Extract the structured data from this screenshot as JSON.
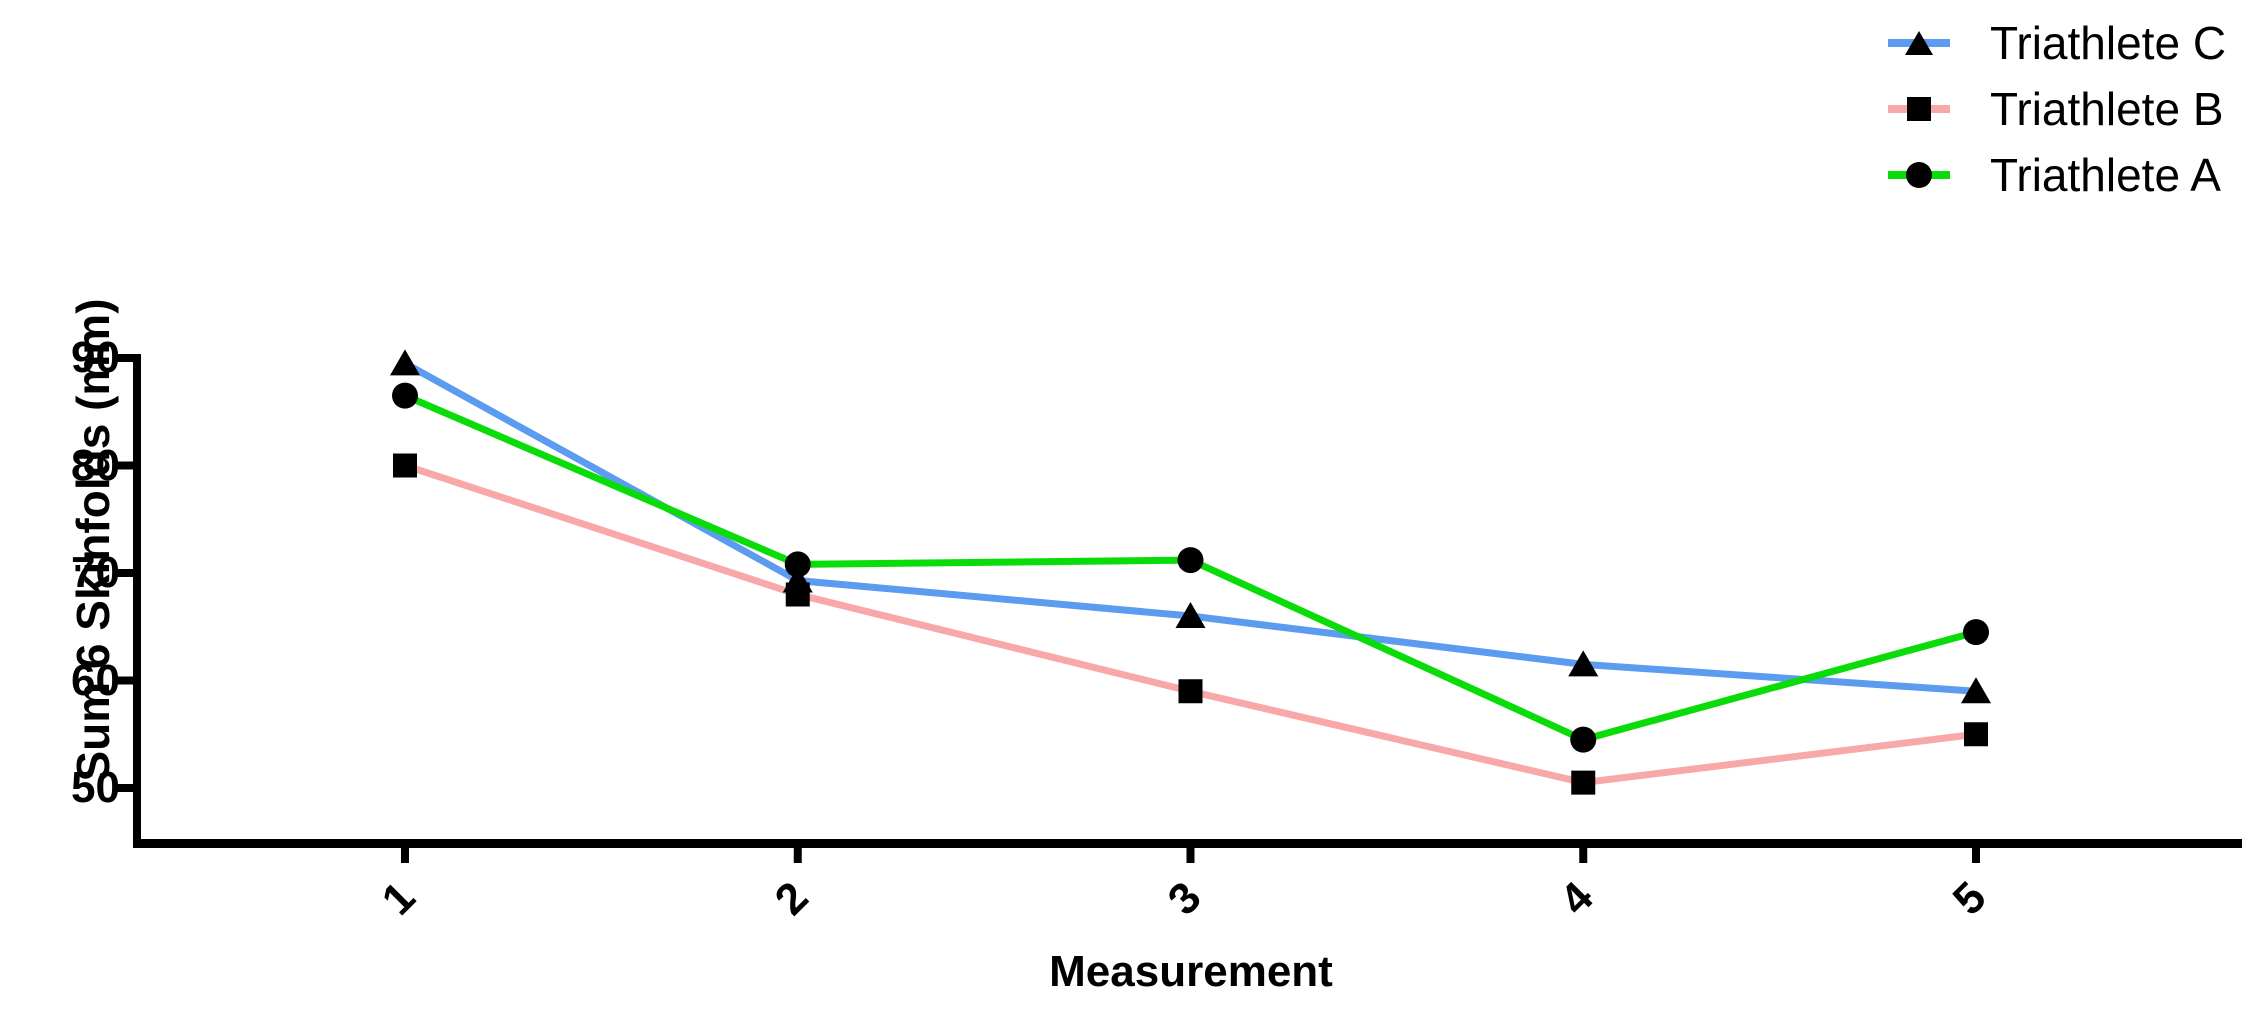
{
  "chart_data": {
    "type": "line",
    "title": "",
    "xlabel": "Measurement",
    "ylabel": "Sum 6 Skinfolds (mm)",
    "x": [
      1,
      2,
      3,
      4,
      5
    ],
    "xtick_labels": [
      "1",
      "2",
      "3",
      "4",
      "5"
    ],
    "ytick_labels": [
      90,
      80,
      70,
      60,
      50
    ],
    "ylim": [
      44.5,
      90.4
    ],
    "xlim": [
      0.3,
      5.7
    ],
    "grid": false,
    "legend_position": "top-right",
    "series": [
      {
        "name": "Triathlete C",
        "color": "#5B9BF0",
        "marker": "triangle",
        "marker_color": "#000000",
        "values": [
          89.5,
          69.3,
          66.0,
          61.5,
          59.0
        ]
      },
      {
        "name": "Triathlete B",
        "color": "#F8A8A8",
        "marker": "square",
        "marker_color": "#000000",
        "values": [
          80.0,
          68.0,
          59.0,
          50.5,
          55.0
        ]
      },
      {
        "name": "Triathlete A",
        "color": "#0ADC0A",
        "marker": "circle",
        "marker_color": "#000000",
        "values": [
          86.5,
          70.8,
          71.2,
          54.5,
          64.5
        ]
      }
    ]
  },
  "colors": {
    "axis": "#000000",
    "text": "#000000",
    "background": "#FFFFFF"
  }
}
